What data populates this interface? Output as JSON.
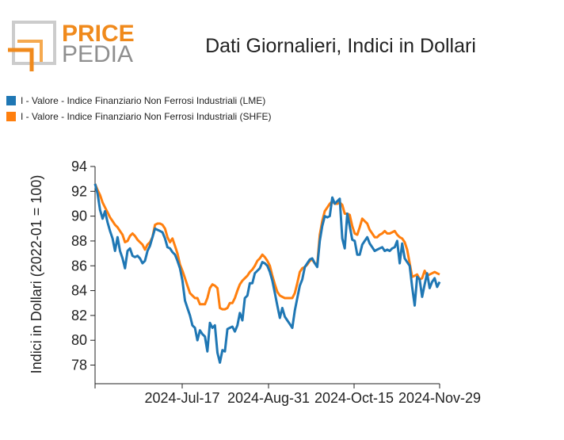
{
  "logo": {
    "word1": "PRICE",
    "word2": "PEDIA"
  },
  "chart_data": {
    "type": "line",
    "title": "Dati Giornalieri, Indici in Dollari",
    "ylabel": "Indici in Dollari (2022-01 = 100)",
    "xlabel": "",
    "ylim": [
      76.5,
      94
    ],
    "yticks": [
      "94",
      "92",
      "90",
      "88",
      "86",
      "84",
      "82",
      "80",
      "78"
    ],
    "xticks": [
      "2024-Jul-17",
      "2024-Aug-31",
      "2024-Oct-15",
      "2024-Nov-29"
    ],
    "legend_position": "top-left",
    "grid": false,
    "series": [
      {
        "name": "I - Valore - Indice Finanziario Non Ferrosi Industriali (LME)",
        "color": "#1f77b4",
        "values": [
          92.6,
          91.8,
          90.5,
          89.8,
          90.4,
          89.5,
          88.8,
          88.2,
          87.2,
          88.3,
          87.2,
          86.6,
          85.8,
          87.2,
          87.4,
          86.8,
          86.7,
          86.8,
          86.6,
          86.2,
          86.4,
          87.2,
          87.6,
          88.3,
          89.0,
          88.9,
          88.8,
          88.7,
          88.2,
          87.5,
          87.4,
          87.1,
          86.9,
          86.4,
          85.8,
          84.8,
          83.2,
          82.6,
          82.0,
          81.2,
          81.0,
          80.0,
          80.8,
          80.5,
          80.3,
          79.1,
          81.4,
          81.0,
          81.2,
          79.0,
          78.2,
          79.2,
          79.1,
          80.9,
          81.0,
          81.1,
          80.7,
          81.2,
          82.2,
          81.6,
          83.4,
          83.6,
          84.6,
          84.6,
          85.4,
          85.6,
          85.8,
          86.3,
          86.2,
          86.0,
          85.5,
          84.8,
          83.8,
          82.8,
          81.8,
          82.6,
          81.9,
          81.6,
          81.3,
          81.0,
          82.4,
          83.4,
          84.4,
          84.9,
          85.9,
          86.2,
          86.5,
          86.6,
          86.2,
          85.9,
          88.0,
          89.2,
          90.0,
          89.9,
          90.0,
          91.5,
          91.0,
          91.2,
          91.4,
          88.2,
          87.4,
          90.2,
          89.2,
          88.1,
          88.0,
          86.9,
          86.9,
          87.7,
          88.0,
          88.3,
          87.8,
          87.5,
          87.2,
          87.3,
          87.4,
          87.5,
          87.2,
          87.3,
          87.2,
          87.4,
          87.5,
          88.0,
          86.2,
          87.8,
          86.6,
          86.3,
          86.0,
          84.3,
          82.8,
          85.1,
          84.9,
          83.5,
          84.5,
          85.4,
          84.2,
          84.7,
          85.0,
          84.3,
          84.7
        ]
      },
      {
        "name": "I - Valore - Indice Finanziario Non Ferrosi Industriali (SHFE)",
        "color": "#ff7f0e",
        "values": [
          92.6,
          92.1,
          91.7,
          91.1,
          90.7,
          90.3,
          89.9,
          89.6,
          89.3,
          89.1,
          88.8,
          88.5,
          87.9,
          88.0,
          88.4,
          88.6,
          88.4,
          88.1,
          87.9,
          87.7,
          87.3,
          87.7,
          87.9,
          88.3,
          89.3,
          89.4,
          89.4,
          89.3,
          89.0,
          88.3,
          87.9,
          88.2,
          87.6,
          87.0,
          86.1,
          85.6,
          85.0,
          84.4,
          83.8,
          83.6,
          83.4,
          83.4,
          82.9,
          82.9,
          82.9,
          83.4,
          84.2,
          84.5,
          84.4,
          84.2,
          82.6,
          82.5,
          82.5,
          82.6,
          83.0,
          83.0,
          83.4,
          84.0,
          84.5,
          84.8,
          85.0,
          85.2,
          85.5,
          85.7,
          86.0,
          86.4,
          86.6,
          86.9,
          86.7,
          86.4,
          86.0,
          85.2,
          84.5,
          83.9,
          83.6,
          83.5,
          83.4,
          83.4,
          83.4,
          83.4,
          83.8,
          84.6,
          85.5,
          85.8,
          85.9,
          86.1,
          86.4,
          86.5,
          86.2,
          86.1,
          88.5,
          89.6,
          90.4,
          90.7,
          91.0,
          91.2,
          91.0,
          91.0,
          91.1,
          90.9,
          90.2,
          90.2,
          90.1,
          89.2,
          88.6,
          88.5,
          89.1,
          89.8,
          89.6,
          89.4,
          88.9,
          88.6,
          88.3,
          88.3,
          88.5,
          88.6,
          88.8,
          88.6,
          88.6,
          88.7,
          88.8,
          88.5,
          88.3,
          88.2,
          87.9,
          87.3,
          86.2,
          85.1,
          85.2,
          85.3,
          84.9,
          85.0,
          85.6,
          85.2,
          85.3,
          85.4,
          85.5,
          85.4,
          85.3
        ]
      }
    ]
  }
}
